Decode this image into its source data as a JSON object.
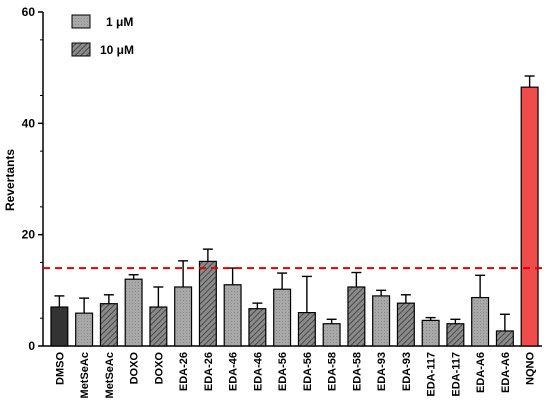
{
  "chart_data": {
    "type": "bar",
    "ylabel": "Revertants",
    "xlabel": "",
    "ylim": [
      0,
      60
    ],
    "yticks": [
      "0",
      "20",
      "40",
      "60"
    ],
    "threshold": 14,
    "legend": [
      {
        "name": "1 μM",
        "pattern": "dotted"
      },
      {
        "name": "10 μM",
        "pattern": "hatched"
      }
    ],
    "categories": [
      "DMSO",
      "MetSeAc",
      "MetSeAc",
      "DOXO",
      "DOXO",
      "EDA-26",
      "EDA-26",
      "EDA-46",
      "EDA-46",
      "EDA-56",
      "EDA-56",
      "EDA-58",
      "EDA-58",
      "EDA-93",
      "EDA-93",
      "EDA-117",
      "EDA-117",
      "EDA-A6",
      "EDA-A6",
      "NQNO"
    ],
    "values": [
      7.0,
      5.9,
      7.6,
      12.0,
      7.0,
      10.6,
      15.2,
      11.0,
      6.7,
      10.2,
      6.0,
      4.0,
      10.6,
      9.0,
      7.7,
      4.6,
      4.0,
      8.7,
      2.7,
      46.5
    ],
    "errors": [
      2.0,
      2.7,
      1.6,
      0.8,
      3.6,
      4.7,
      2.2,
      3.0,
      1.0,
      2.9,
      6.5,
      0.8,
      2.6,
      1.0,
      1.5,
      0.5,
      0.8,
      4.0,
      3.0,
      2.0
    ],
    "patterns": [
      "solid",
      "dotted",
      "hatched",
      "dotted",
      "hatched",
      "dotted",
      "hatched",
      "dotted",
      "hatched",
      "dotted",
      "hatched",
      "dotted",
      "hatched",
      "dotted",
      "hatched",
      "dotted",
      "hatched",
      "dotted",
      "hatched",
      "red"
    ],
    "colors": {
      "control": "#333333",
      "dotted": "#a6a6a6",
      "hatched": "#7a7a7a",
      "positive": "#f04c4c",
      "threshold_line": "#e00000"
    }
  }
}
